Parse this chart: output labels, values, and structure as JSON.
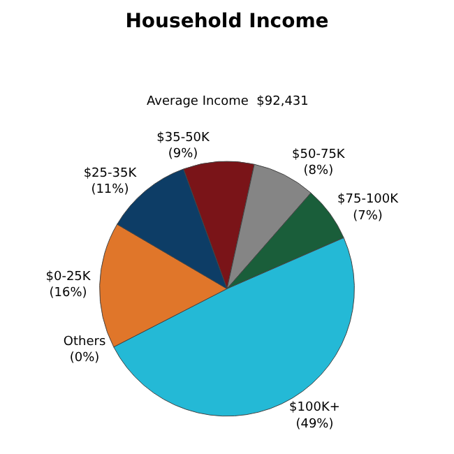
{
  "chart_data": {
    "type": "pie",
    "title": "Household Income",
    "subtitle": "Average Income  $92,431",
    "categories": [
      "$35-50K",
      "$50-75K",
      "$75-100K",
      "$100K+",
      "Others",
      "$0-25K",
      "$25-35K"
    ],
    "values": [
      9,
      8,
      7,
      49,
      0,
      16,
      11
    ],
    "value_labels": [
      "(9%)",
      "(8%)",
      "(7%)",
      "(49%)",
      "(0%)",
      "(16%)",
      "(11%)"
    ],
    "colors": [
      "#7a1418",
      "#858585",
      "#1a5e3a",
      "#24b9d6",
      "#c0c0c0",
      "#e0762a",
      "#0d3d66"
    ],
    "legend": false
  }
}
